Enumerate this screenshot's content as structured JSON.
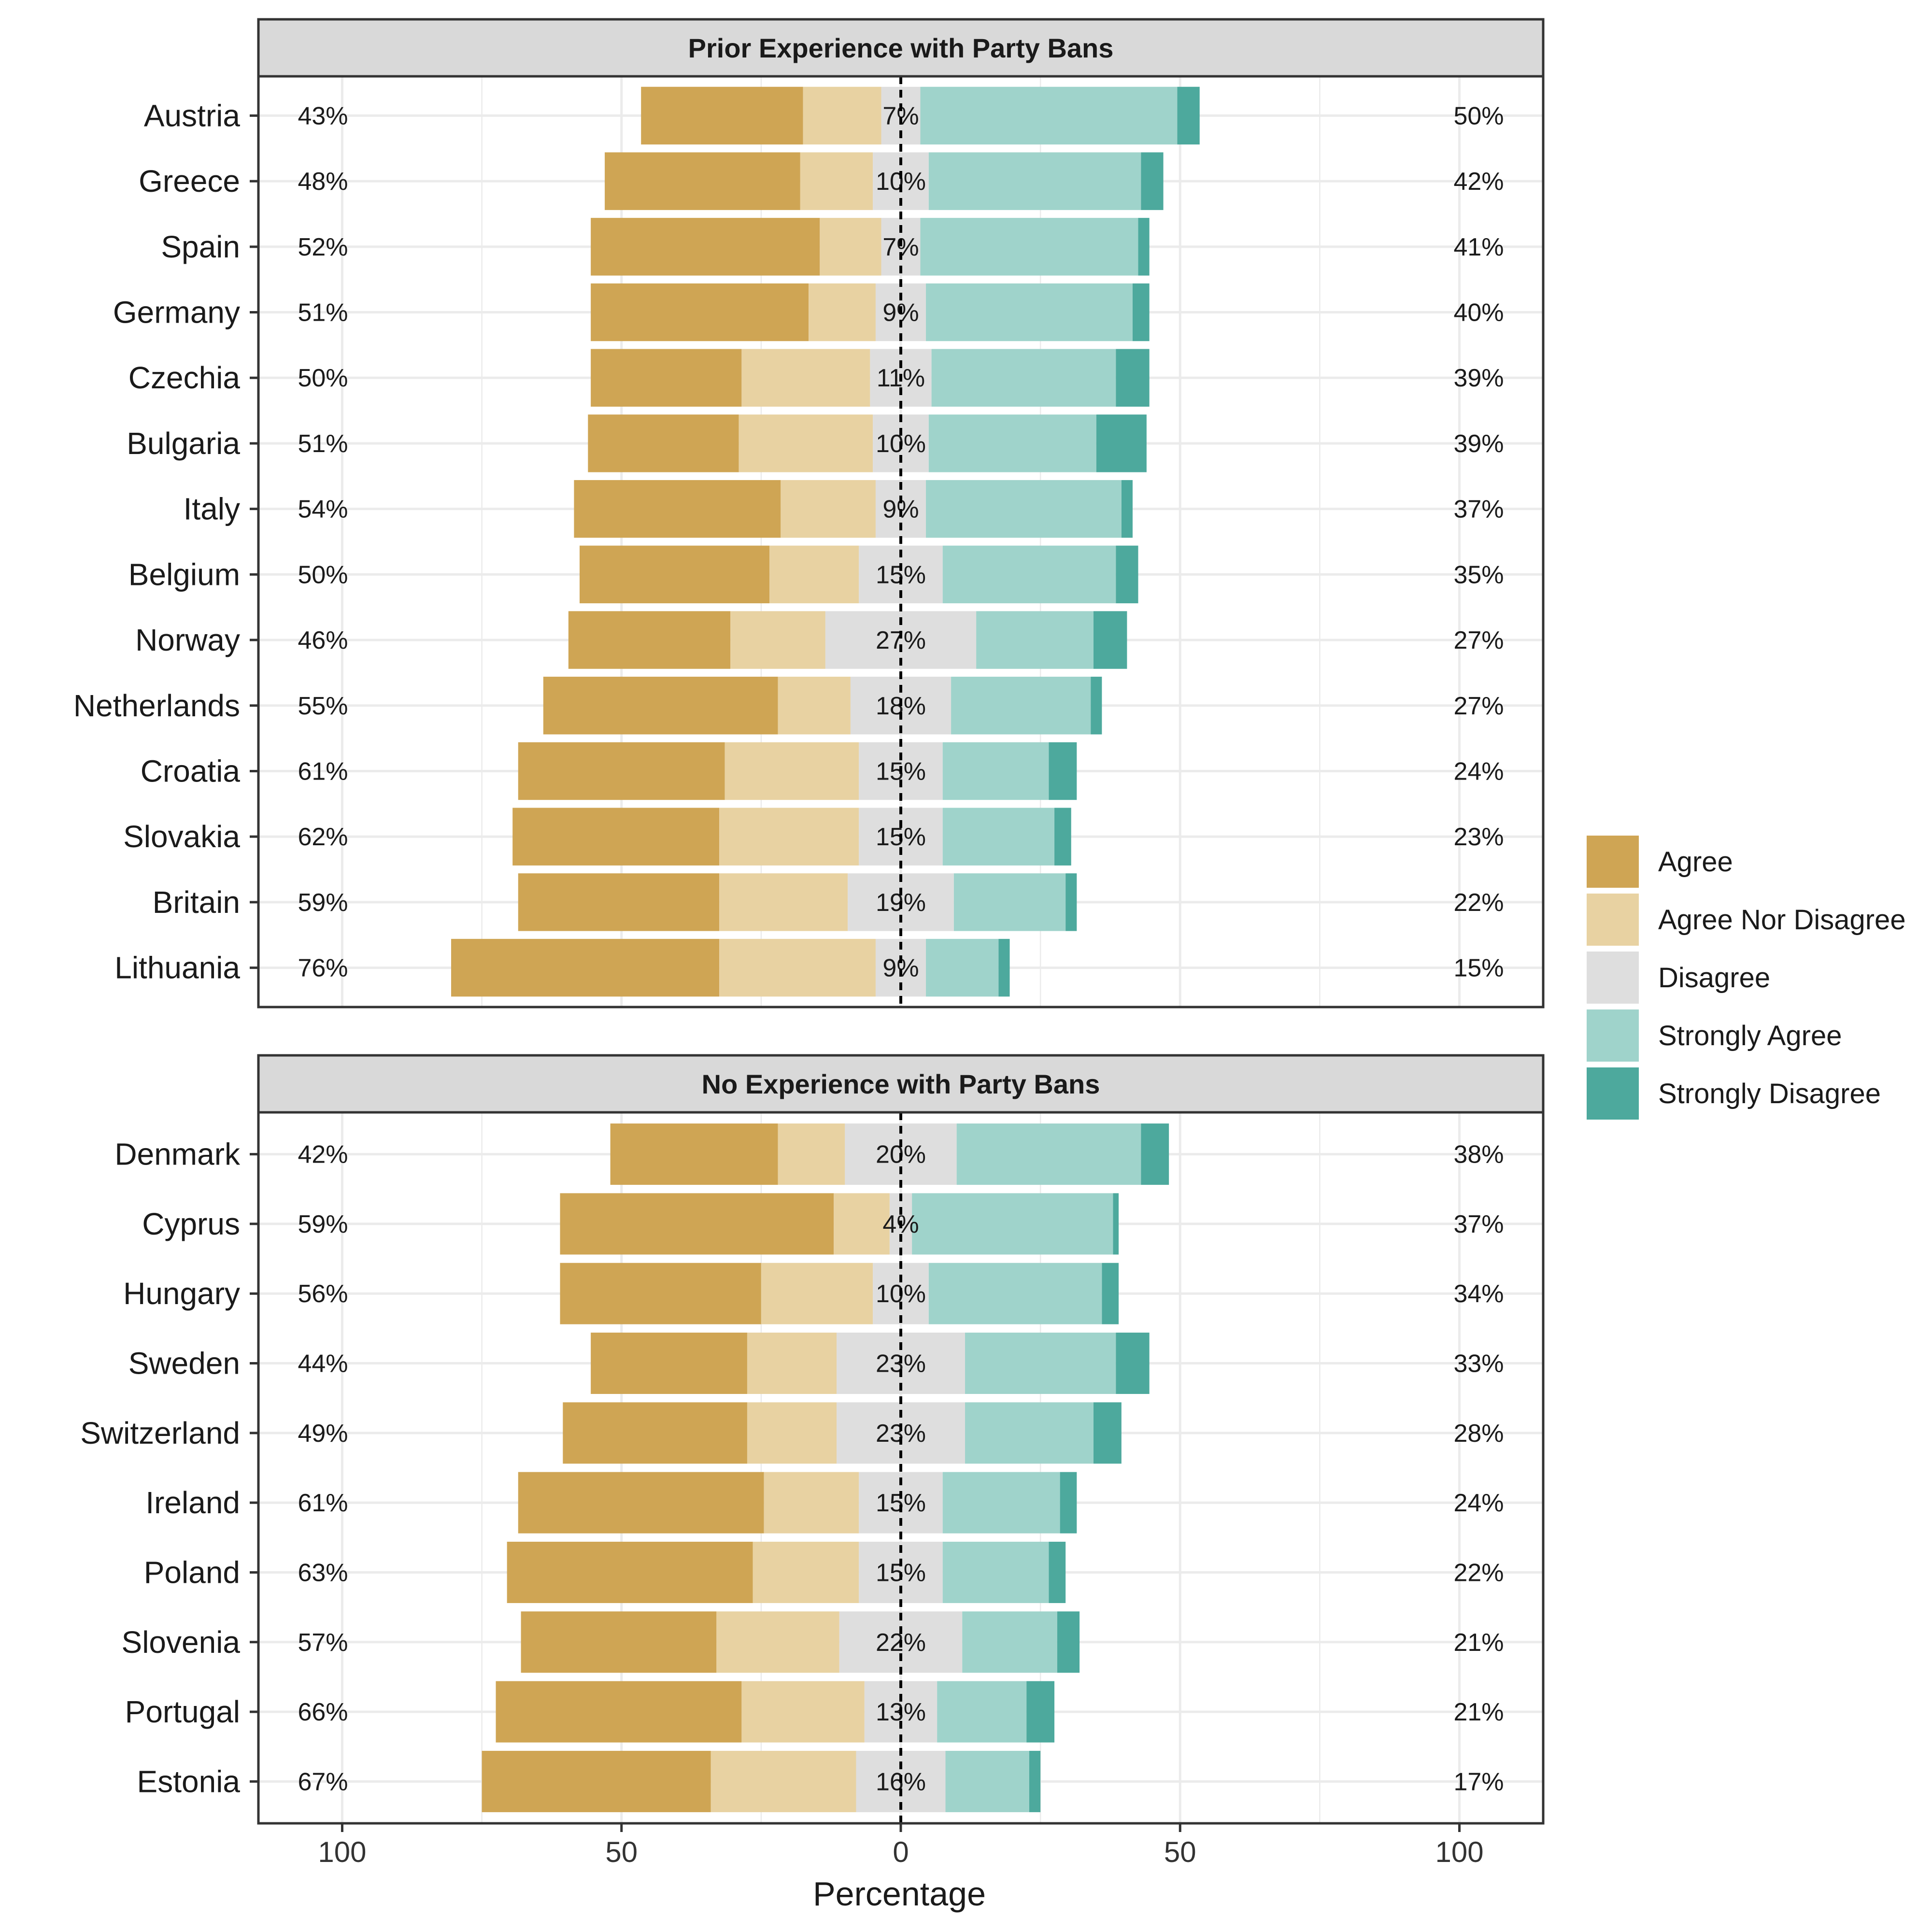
{
  "chart_data": {
    "type": "bar",
    "subtype": "diverging-stacked-horizontal",
    "xlabel": "Percentage",
    "x_ticks": [
      "100",
      "50",
      "0",
      "50",
      "100"
    ],
    "x_tick_values": [
      -100,
      -50,
      0,
      50,
      100
    ],
    "xlim": [
      -115,
      115
    ],
    "grid": true,
    "legend_position": "right",
    "legend": [
      {
        "key": "agree",
        "name": "Agree",
        "color": "#CFA554"
      },
      {
        "key": "neutral",
        "name": "Agree Nor Disagree",
        "color": "#E8D2A2"
      },
      {
        "key": "disagree",
        "name": "Disagree",
        "color": "#DEDEDE"
      },
      {
        "key": "strongly_agree",
        "name": "Strongly Agree",
        "color": "#9FD3CB"
      },
      {
        "key": "strongly_disagree",
        "name": "Strongly Disagree",
        "color": "#4DA99D"
      }
    ],
    "panels": [
      {
        "title": "Prior Experience with Party Bans",
        "rows": [
          {
            "country": "Austria",
            "agree": 29,
            "neutral": 14,
            "disagree": 7,
            "strongly_agree": 46,
            "strongly_disagree": 4,
            "left_label": "43%",
            "mid_label": "7%",
            "right_label": "50%"
          },
          {
            "country": "Greece",
            "agree": 35,
            "neutral": 13,
            "disagree": 10,
            "strongly_agree": 38,
            "strongly_disagree": 4,
            "left_label": "48%",
            "mid_label": "10%",
            "right_label": "42%"
          },
          {
            "country": "Spain",
            "agree": 41,
            "neutral": 11,
            "disagree": 7,
            "strongly_agree": 39,
            "strongly_disagree": 2,
            "left_label": "52%",
            "mid_label": "7%",
            "right_label": "41%"
          },
          {
            "country": "Germany",
            "agree": 39,
            "neutral": 12,
            "disagree": 9,
            "strongly_agree": 37,
            "strongly_disagree": 3,
            "left_label": "51%",
            "mid_label": "9%",
            "right_label": "40%"
          },
          {
            "country": "Czechia",
            "agree": 27,
            "neutral": 23,
            "disagree": 11,
            "strongly_agree": 33,
            "strongly_disagree": 6,
            "left_label": "50%",
            "mid_label": "11%",
            "right_label": "39%"
          },
          {
            "country": "Bulgaria",
            "agree": 27,
            "neutral": 24,
            "disagree": 10,
            "strongly_agree": 30,
            "strongly_disagree": 9,
            "left_label": "51%",
            "mid_label": "10%",
            "right_label": "39%"
          },
          {
            "country": "Italy",
            "agree": 37,
            "neutral": 17,
            "disagree": 9,
            "strongly_agree": 35,
            "strongly_disagree": 2,
            "left_label": "54%",
            "mid_label": "9%",
            "right_label": "37%"
          },
          {
            "country": "Belgium",
            "agree": 34,
            "neutral": 16,
            "disagree": 15,
            "strongly_agree": 31,
            "strongly_disagree": 4,
            "left_label": "50%",
            "mid_label": "15%",
            "right_label": "35%"
          },
          {
            "country": "Norway",
            "agree": 29,
            "neutral": 17,
            "disagree": 27,
            "strongly_agree": 21,
            "strongly_disagree": 6,
            "left_label": "46%",
            "mid_label": "27%",
            "right_label": "27%"
          },
          {
            "country": "Netherlands",
            "agree": 42,
            "neutral": 13,
            "disagree": 18,
            "strongly_agree": 25,
            "strongly_disagree": 2,
            "left_label": "55%",
            "mid_label": "18%",
            "right_label": "27%"
          },
          {
            "country": "Croatia",
            "agree": 37,
            "neutral": 24,
            "disagree": 15,
            "strongly_agree": 19,
            "strongly_disagree": 5,
            "left_label": "61%",
            "mid_label": "15%",
            "right_label": "24%"
          },
          {
            "country": "Slovakia",
            "agree": 37,
            "neutral": 25,
            "disagree": 15,
            "strongly_agree": 20,
            "strongly_disagree": 3,
            "left_label": "62%",
            "mid_label": "15%",
            "right_label": "23%"
          },
          {
            "country": "Britain",
            "agree": 36,
            "neutral": 23,
            "disagree": 19,
            "strongly_agree": 20,
            "strongly_disagree": 2,
            "left_label": "59%",
            "mid_label": "19%",
            "right_label": "22%"
          },
          {
            "country": "Lithuania",
            "agree": 48,
            "neutral": 28,
            "disagree": 9,
            "strongly_agree": 13,
            "strongly_disagree": 2,
            "left_label": "76%",
            "mid_label": "9%",
            "right_label": "15%"
          }
        ]
      },
      {
        "title": "No Experience with Party Bans",
        "rows": [
          {
            "country": "Denmark",
            "agree": 30,
            "neutral": 12,
            "disagree": 20,
            "strongly_agree": 33,
            "strongly_disagree": 5,
            "left_label": "42%",
            "mid_label": "20%",
            "right_label": "38%"
          },
          {
            "country": "Cyprus",
            "agree": 49,
            "neutral": 10,
            "disagree": 4,
            "strongly_agree": 36,
            "strongly_disagree": 1,
            "left_label": "59%",
            "mid_label": "4%",
            "right_label": "37%"
          },
          {
            "country": "Hungary",
            "agree": 36,
            "neutral": 20,
            "disagree": 10,
            "strongly_agree": 31,
            "strongly_disagree": 3,
            "left_label": "56%",
            "mid_label": "10%",
            "right_label": "34%"
          },
          {
            "country": "Sweden",
            "agree": 28,
            "neutral": 16,
            "disagree": 23,
            "strongly_agree": 27,
            "strongly_disagree": 6,
            "left_label": "44%",
            "mid_label": "23%",
            "right_label": "33%"
          },
          {
            "country": "Switzerland",
            "agree": 33,
            "neutral": 16,
            "disagree": 23,
            "strongly_agree": 23,
            "strongly_disagree": 5,
            "left_label": "49%",
            "mid_label": "23%",
            "right_label": "28%"
          },
          {
            "country": "Ireland",
            "agree": 44,
            "neutral": 17,
            "disagree": 15,
            "strongly_agree": 21,
            "strongly_disagree": 3,
            "left_label": "61%",
            "mid_label": "15%",
            "right_label": "24%"
          },
          {
            "country": "Poland",
            "agree": 44,
            "neutral": 19,
            "disagree": 15,
            "strongly_agree": 19,
            "strongly_disagree": 3,
            "left_label": "63%",
            "mid_label": "15%",
            "right_label": "22%"
          },
          {
            "country": "Slovenia",
            "agree": 35,
            "neutral": 22,
            "disagree": 22,
            "strongly_agree": 17,
            "strongly_disagree": 4,
            "left_label": "57%",
            "mid_label": "22%",
            "right_label": "21%"
          },
          {
            "country": "Portugal",
            "agree": 44,
            "neutral": 22,
            "disagree": 13,
            "strongly_agree": 16,
            "strongly_disagree": 5,
            "left_label": "66%",
            "mid_label": "13%",
            "right_label": "21%"
          },
          {
            "country": "Estonia",
            "agree": 41,
            "neutral": 26,
            "disagree": 16,
            "strongly_agree": 15,
            "strongly_disagree": 2,
            "left_label": "67%",
            "mid_label": "16%",
            "right_label": "17%"
          }
        ]
      }
    ]
  }
}
